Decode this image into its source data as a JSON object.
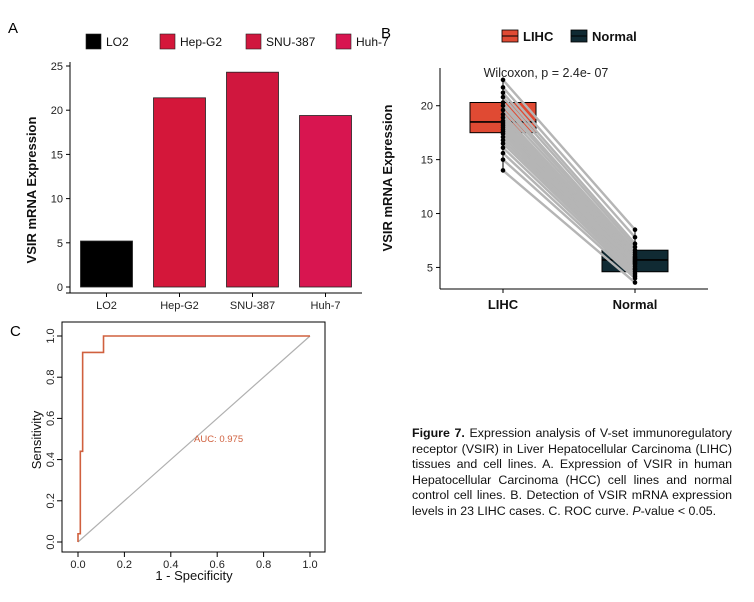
{
  "chart_data": [
    {
      "panel": "A",
      "type": "bar",
      "categories": [
        "LO2",
        "Hep-G2",
        "SNU-387",
        "Huh-7"
      ],
      "values": [
        5.2,
        21.4,
        24.3,
        19.4
      ],
      "colors": [
        "#000000",
        "#d4173a",
        "#d0173e",
        "#d81550"
      ],
      "ylabel": "VSIR mRNA Expression",
      "xlabel": "",
      "ylim": [
        0,
        25
      ],
      "yticks": [
        "0",
        "5",
        "10",
        "15",
        "20",
        "25"
      ],
      "legend": [
        "LO2",
        "Hep-G2",
        "SNU-387",
        "Huh-7"
      ],
      "legend_position": "top",
      "grid": false
    },
    {
      "panel": "B",
      "type": "box",
      "categories": [
        "LIHC",
        "Normal"
      ],
      "series": [
        {
          "name": "LIHC",
          "color": "#e04a33",
          "box": {
            "min": 14,
            "q1": 17.5,
            "median": 18.5,
            "q3": 20.3,
            "max": 22.5
          },
          "points": [
            22.4,
            21.7,
            21.2,
            20.8,
            20.3,
            20.0,
            19.6,
            19.2,
            18.9,
            18.6,
            18.4,
            18.2,
            18.0,
            17.8,
            17.6,
            17.4,
            17.1,
            16.8,
            16.5,
            16.1,
            15.6,
            15.0,
            14.0
          ]
        },
        {
          "name": "Normal",
          "color": "#102a33",
          "box": {
            "min": 4.0,
            "q1": 4.6,
            "median": 5.7,
            "q3": 6.6,
            "max": 8.5
          },
          "points": [
            8.5,
            7.8,
            7.2,
            6.9,
            6.6,
            6.4,
            6.2,
            6.0,
            5.9,
            5.8,
            5.7,
            5.6,
            5.5,
            5.4,
            5.3,
            5.1,
            4.9,
            4.8,
            4.6,
            4.4,
            4.2,
            4.0,
            3.6
          ]
        }
      ],
      "annotation": "Wilcoxon, p = 2.4e- 07",
      "ylabel": "VSIR mRNA Expression",
      "ylim": [
        3,
        23.5
      ],
      "yticks": [
        "5",
        "10",
        "15",
        "20"
      ],
      "legend_position": "top",
      "grid": false
    },
    {
      "panel": "C",
      "type": "line",
      "title": "",
      "xlabel": "1 - Specificity",
      "ylabel": "Sensitivity",
      "xlim": [
        0,
        1
      ],
      "ylim": [
        0,
        1
      ],
      "xticks": [
        "0.0",
        "0.2",
        "0.4",
        "0.6",
        "0.8",
        "1.0"
      ],
      "yticks": [
        "0.0",
        "0.2",
        "0.4",
        "0.6",
        "0.8",
        "1.0"
      ],
      "series": [
        {
          "name": "ROC",
          "color": "#d0603e",
          "x": [
            0.0,
            0.0,
            0.01,
            0.01,
            0.02,
            0.02,
            0.11,
            0.11,
            1.0
          ],
          "y": [
            0.0,
            0.04,
            0.04,
            0.44,
            0.44,
            0.92,
            0.92,
            1.0,
            1.0
          ]
        },
        {
          "name": "reference",
          "color": "#b0b0b0",
          "x": [
            0,
            1
          ],
          "y": [
            0,
            1
          ]
        }
      ],
      "annotation": "AUC: 0.975",
      "grid": false
    }
  ],
  "panel_letters": [
    "A",
    "B",
    "C"
  ],
  "caption": {
    "label": "Figure 7.",
    "part1": " Expression analysis of V-set immunoregulatory receptor (VSIR) in Liver Hepatocellular Carcinoma (LIHC) tissues and cell lines. A. Expression of VSIR in human Hepatocellular Carcinoma (HCC) cell lines and normal control cell lines. B. Detection of VSIR mRNA expression levels in 23 LIHC cases. C. ROC curve. ",
    "pvalue_italic": "P",
    "part2": "-value < 0.05."
  }
}
